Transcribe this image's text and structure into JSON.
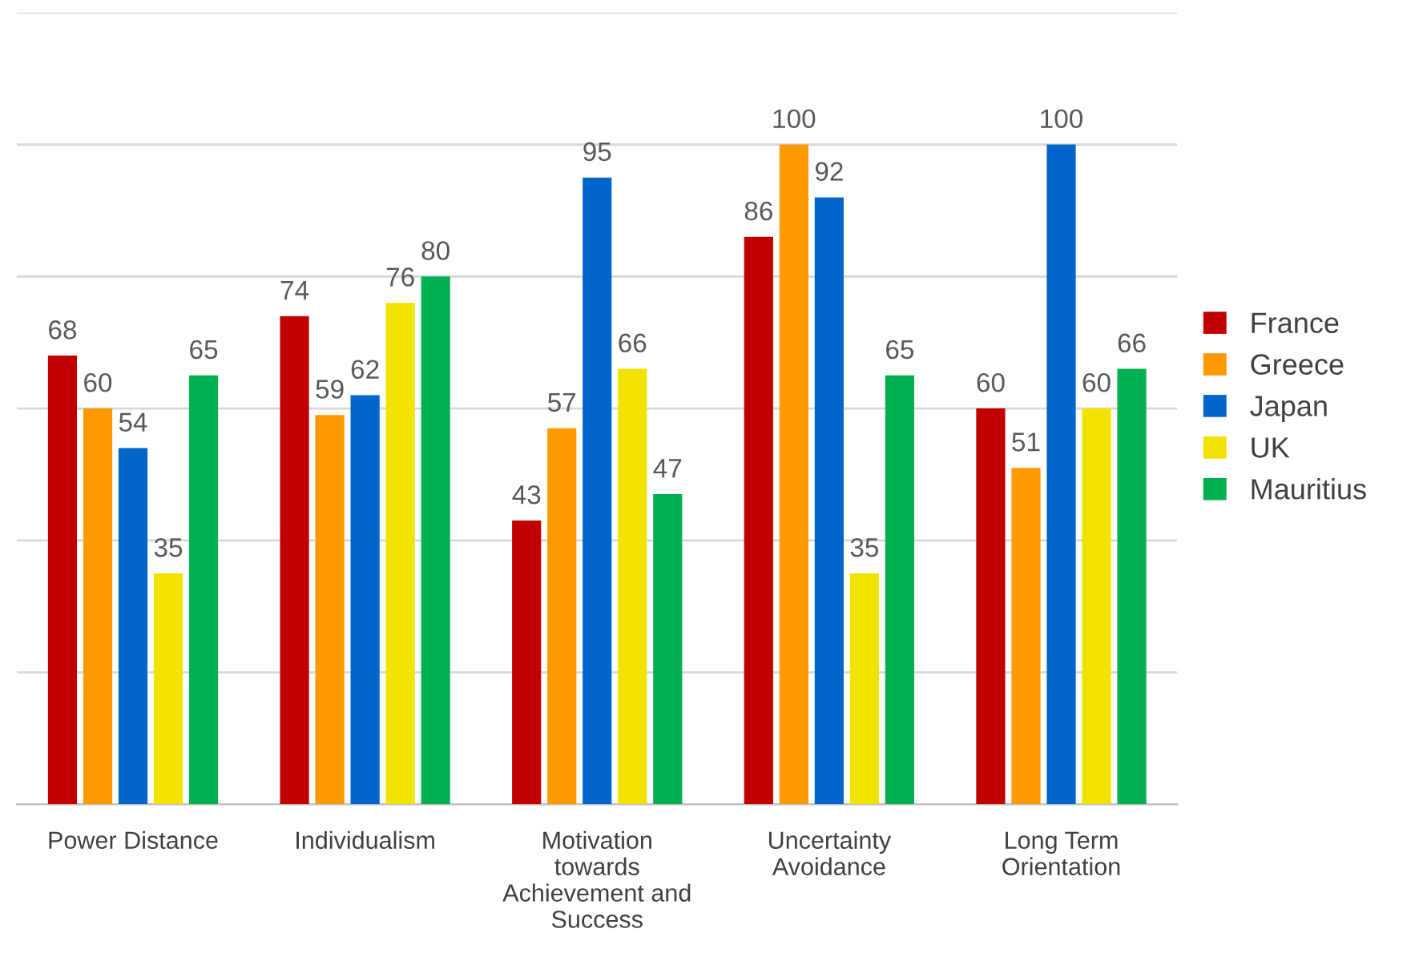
{
  "chart_data": {
    "type": "bar",
    "categories": [
      "Power Distance",
      "Individualism",
      "Motivation\ntowards\nAchievement and\nSuccess",
      "Uncertainty\nAvoidance",
      "Long Term\nOrientation"
    ],
    "series": [
      {
        "name": "France",
        "color": "#c00000",
        "values": [
          68,
          74,
          43,
          86,
          60
        ]
      },
      {
        "name": "Greece",
        "color": "#ff9900",
        "values": [
          60,
          59,
          57,
          100,
          51
        ]
      },
      {
        "name": "Japan",
        "color": "#0066cc",
        "values": [
          54,
          62,
          95,
          92,
          100
        ]
      },
      {
        "name": "UK",
        "color": "#f2e200",
        "values": [
          35,
          76,
          66,
          35,
          60
        ]
      },
      {
        "name": "Mauritius",
        "color": "#00b050",
        "values": [
          65,
          80,
          47,
          65,
          66
        ]
      }
    ],
    "ylim": [
      0,
      120
    ],
    "yticks": [
      {
        "value": 0,
        "label": null
      },
      {
        "value": 20,
        "label": null
      },
      {
        "value": 40,
        "label": null
      },
      {
        "value": 60,
        "label": null
      },
      {
        "value": 80,
        "label": null
      },
      {
        "value": 100,
        "label": null
      },
      {
        "value": 120,
        "label": null
      }
    ],
    "grid": "y",
    "tick_labels": "x",
    "data_labels": true,
    "legend": "right"
  }
}
